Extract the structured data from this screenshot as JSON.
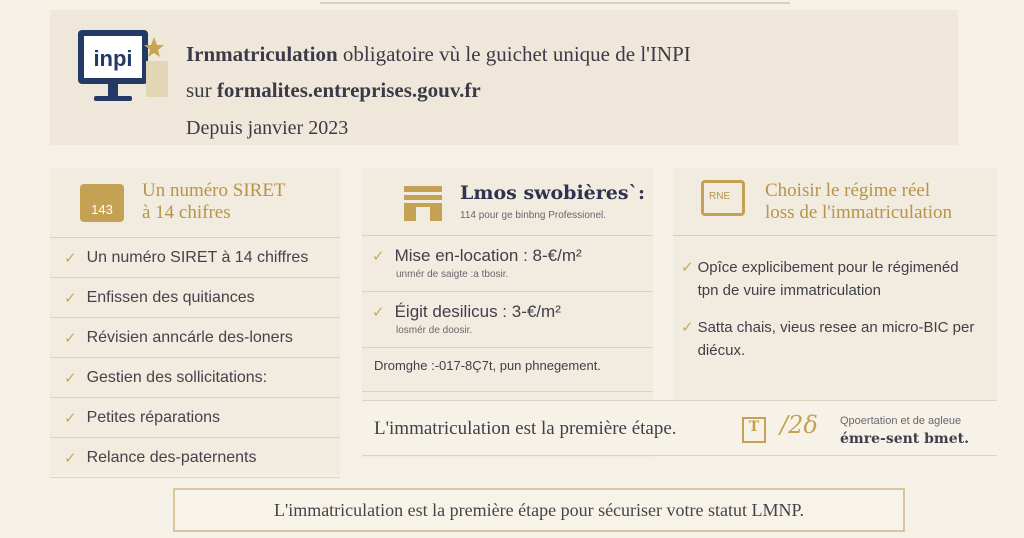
{
  "banner": {
    "line1_bold": "Irnmatriculation",
    "line1_rest": " obligatoire vù le guichet unique de l'INPI",
    "line2_pre": "sur ",
    "line2_bold": "formalites.entreprises.gouv.fr",
    "line3": "Depuis janvier 2023",
    "logo": "inpi"
  },
  "col1": {
    "icon_text": "143",
    "title": [
      "Un numéro SIRET",
      "à 14 chifres"
    ],
    "items": [
      "Un numéro SIRET à 14 chiffres",
      "Enfissen des quitiances",
      "Révisien anncárle des-loners",
      "Gestien des sollicitations:",
      "Petites réparations",
      "Relance des-paternents"
    ]
  },
  "col2": {
    "title": "Lmos swobières`:",
    "subtitle": "114 pour ge binbng Professionel.",
    "items": [
      {
        "label": "Mise en-location : 8-€/m²",
        "note": "unmér de saigte :a tbosir."
      },
      {
        "label": "Éigit desilicus : 3-€/m²",
        "note": "losmér de doosir."
      }
    ],
    "footer_note": "Dromghe :-017-8Ç7t, pun phnegement."
  },
  "col3": {
    "icon_text": "RNE",
    "title": [
      "Choisir le régime réel",
      "loss de l'immatriculation"
    ],
    "items": [
      "Opîce explicibement pour le régimenéd tpn de vuire immatriculation",
      "Satta chais, vieus resee an micro-BIC per diécux."
    ]
  },
  "mid_strip": {
    "text": "L'immatriculation est la première étape.",
    "note1": "Qpoertation et de agleue",
    "note2": "émre-sent bmet."
  },
  "footer": {
    "text": "L'immatriculation est la première étape pour sécuriser votre statut LMNP."
  },
  "colors": {
    "gold": "#b89449",
    "navy": "#243a66",
    "background": "#f6f1e7"
  }
}
